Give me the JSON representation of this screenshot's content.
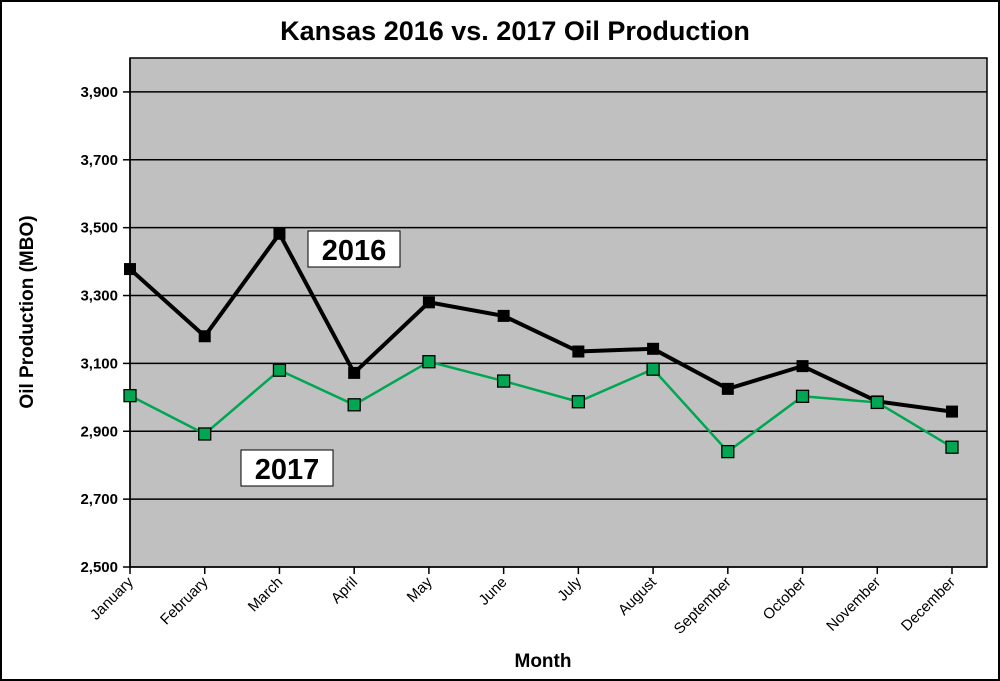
{
  "chart_data": {
    "type": "line",
    "title": "Kansas 2016 vs. 2017 Oil Production",
    "xlabel": "Month",
    "ylabel": "Oil Production (MBO)",
    "ylim": [
      2500,
      4000
    ],
    "yticks": [
      2500,
      2700,
      2900,
      3100,
      3300,
      3500,
      3700,
      3900
    ],
    "ytick_labels": [
      "2,500",
      "2,700",
      "2,900",
      "3,100",
      "3,300",
      "3,500",
      "3,700",
      "3,900"
    ],
    "categories": [
      "January",
      "February",
      "March",
      "April",
      "May",
      "June",
      "July",
      "August",
      "September",
      "October",
      "November",
      "December"
    ],
    "grid": "horizontal",
    "plot_background": "#c0c0c0",
    "series": [
      {
        "name": "2016",
        "color": "#000000",
        "marker_fill": "#000000",
        "values": [
          3378,
          3180,
          3482,
          3072,
          3280,
          3240,
          3135,
          3143,
          3025,
          3092,
          2988,
          2958
        ]
      },
      {
        "name": "2017",
        "color": "#00a651",
        "marker_fill": "#00a651",
        "values": [
          3005,
          2892,
          3080,
          2978,
          3105,
          3048,
          2987,
          3083,
          2840,
          3003,
          2985,
          2853
        ]
      }
    ]
  }
}
